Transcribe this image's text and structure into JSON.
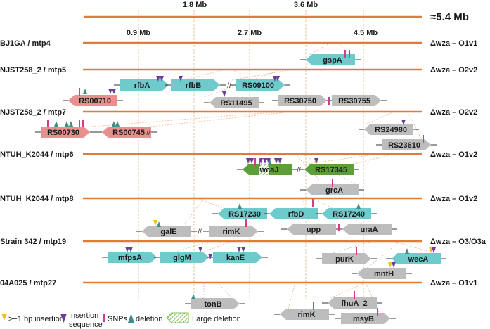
{
  "scale": {
    "total_label": "≈5.4 Mb",
    "ticks": [
      "0.9 Mb",
      "1.8 Mb",
      "2.7 Mb",
      "3.6 Mb",
      "4.5 Mb"
    ]
  },
  "strains": [
    {
      "label": "BJ1GA / mtp4",
      "mutation": "Δwza – O1v1"
    },
    {
      "label": "NJST258_2 / mtp5",
      "mutation": "Δwza – O2v2"
    },
    {
      "label": "NJST258_2 / mtp7",
      "mutation": "Δwza – O2v2"
    },
    {
      "label": "NTUH_K2044 / mtp6",
      "mutation": "Δwza – O1v2"
    },
    {
      "label": "NTUH_K2044 / mtp8",
      "mutation": "Δwza – O1v2"
    },
    {
      "label": "Strain 342 / mtp19",
      "mutation": "Δwza – O3/O3a"
    },
    {
      "label": "04A025 / mtp27",
      "mutation": "Δwza – O1v1"
    }
  ],
  "genes": [
    {
      "name": "gspA"
    },
    {
      "name": "rfbA"
    },
    {
      "name": "rfbB"
    },
    {
      "name": "RS09100"
    },
    {
      "name": "RS00710"
    },
    {
      "name": "RS11495"
    },
    {
      "name": "RS30750"
    },
    {
      "name": "RS30755"
    },
    {
      "name": "RS00730"
    },
    {
      "name": "RS00745"
    },
    {
      "name": "RS24980"
    },
    {
      "name": "RS23610"
    },
    {
      "name": "wcaJ"
    },
    {
      "name": "RS17345"
    },
    {
      "name": "grcA"
    },
    {
      "name": "RS17230"
    },
    {
      "name": "rfbD"
    },
    {
      "name": "RS17240"
    },
    {
      "name": "galE"
    },
    {
      "name": "rimK"
    },
    {
      "name": "upp"
    },
    {
      "name": "uraA"
    },
    {
      "name": "mfpsA"
    },
    {
      "name": "glgM"
    },
    {
      "name": "kanE"
    },
    {
      "name": "purK"
    },
    {
      "name": "wecA"
    },
    {
      "name": "mntH"
    },
    {
      "name": "tonB"
    },
    {
      "name": "fhuA_2"
    },
    {
      "name": "rimK"
    },
    {
      "name": "msyB"
    }
  ],
  "legend": {
    "insertion_small": ">+1 bp insertion",
    "insertion_seq_1": "Insertion",
    "insertion_seq_2": "sequence",
    "snps": "SNPs",
    "deletion": "deletion",
    "large_deletion": "Large deletion"
  },
  "colors": {
    "genome_line": "#E07B39",
    "gene_cyan": "#6ECACB",
    "gene_pink": "#E8908F",
    "gene_gray": "#BDBDBD",
    "gene_green": "#5E9E3A",
    "insertion_small": "#F0C020",
    "insertion_sequence": "#6A3D9A",
    "snp": "#D63A8E",
    "deletion": "#3E8E8A"
  }
}
